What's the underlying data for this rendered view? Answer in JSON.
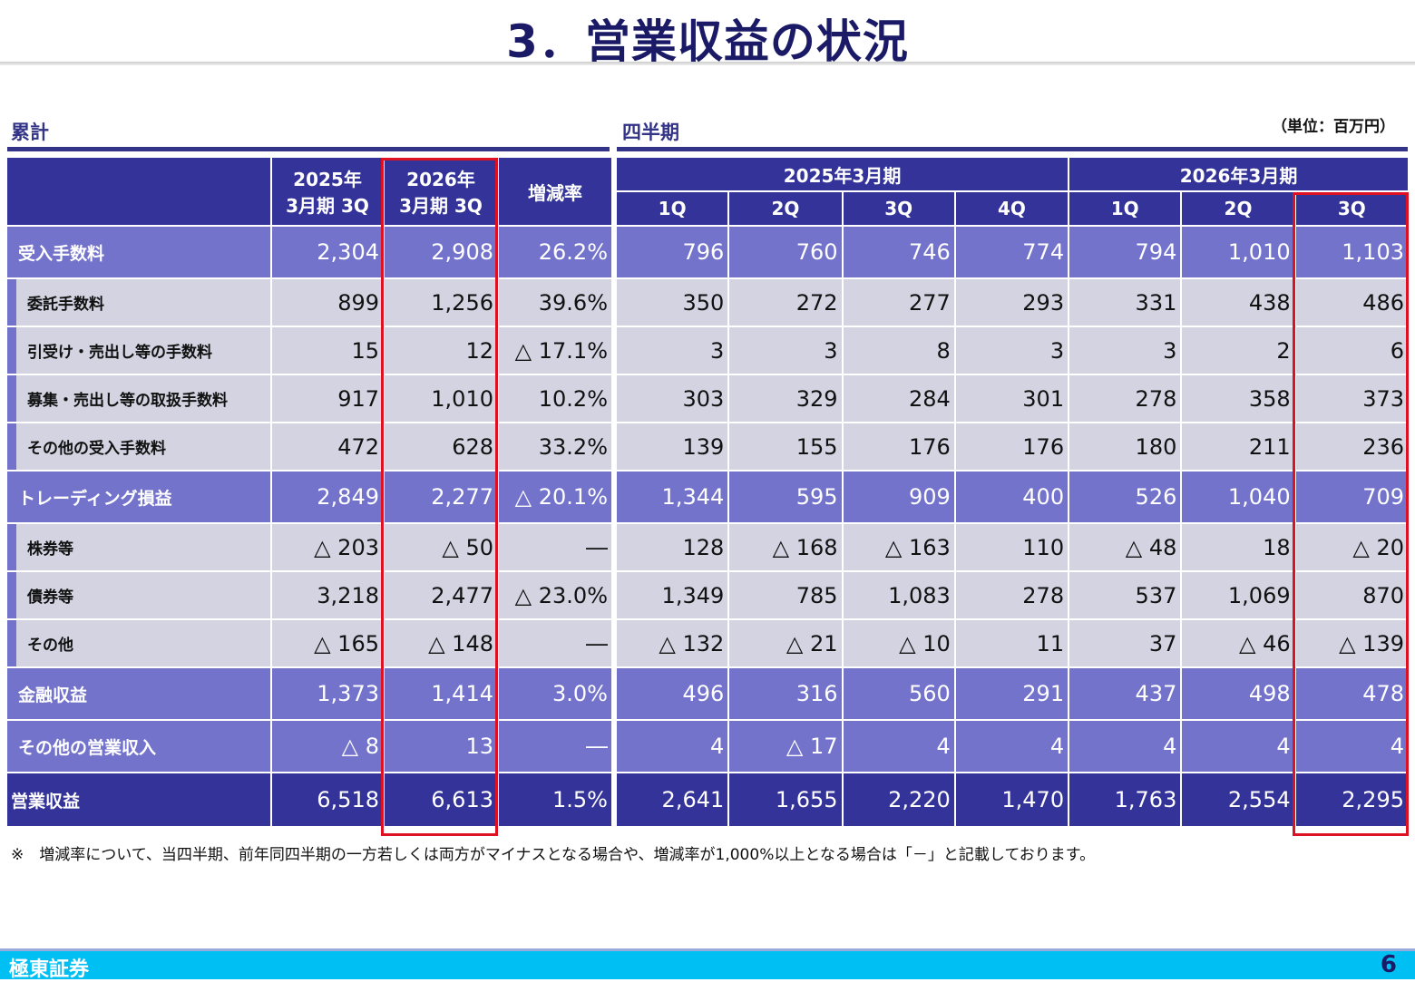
{
  "title": "3．営業収益の状況",
  "cum_label": "累計",
  "quarter_label": "四半期",
  "unit": "（単位：百万円）",
  "cum_headers": {
    "c1_line1": "2025年",
    "c1_line2": "3月期 3Q",
    "c2_line1": "2026年",
    "c2_line2": "3月期 3Q",
    "rate": "増減率"
  },
  "q_headers": {
    "fy1": "2025年3月期",
    "fy2": "2026年3月期",
    "fy1_q": [
      "1Q",
      "2Q",
      "3Q",
      "4Q"
    ],
    "fy2_q": [
      "1Q",
      "2Q",
      "3Q"
    ]
  },
  "rows": [
    {
      "label": "受入手数料",
      "level": "main",
      "cum": [
        "2,304",
        "2,908",
        "26.2%"
      ],
      "q": [
        "796",
        "760",
        "746",
        "774",
        "794",
        "1,010",
        "1,103"
      ]
    },
    {
      "label": "委託手数料",
      "level": "sub",
      "cum": [
        "899",
        "1,256",
        "39.6%"
      ],
      "q": [
        "350",
        "272",
        "277",
        "293",
        "331",
        "438",
        "486"
      ]
    },
    {
      "label": "引受け・売出し等の手数料",
      "level": "sub",
      "cum": [
        "15",
        "12",
        "△ 17.1%"
      ],
      "q": [
        "3",
        "3",
        "8",
        "3",
        "3",
        "2",
        "6"
      ]
    },
    {
      "label": "募集・売出し等の取扱手数料",
      "level": "sub",
      "cum": [
        "917",
        "1,010",
        "10.2%"
      ],
      "q": [
        "303",
        "329",
        "284",
        "301",
        "278",
        "358",
        "373"
      ]
    },
    {
      "label": "その他の受入手数料",
      "level": "sub",
      "cum": [
        "472",
        "628",
        "33.2%"
      ],
      "q": [
        "139",
        "155",
        "176",
        "176",
        "180",
        "211",
        "236"
      ]
    },
    {
      "label": "トレーディング損益",
      "level": "main",
      "cum": [
        "2,849",
        "2,277",
        "△ 20.1%"
      ],
      "q": [
        "1,344",
        "595",
        "909",
        "400",
        "526",
        "1,040",
        "709"
      ]
    },
    {
      "label": "株券等",
      "level": "sub",
      "cum": [
        "△ 203",
        "△ 50",
        "―"
      ],
      "q": [
        "128",
        "△ 168",
        "△ 163",
        "110",
        "△ 48",
        "18",
        "△ 20"
      ]
    },
    {
      "label": "債券等",
      "level": "sub",
      "cum": [
        "3,218",
        "2,477",
        "△ 23.0%"
      ],
      "q": [
        "1,349",
        "785",
        "1,083",
        "278",
        "537",
        "1,069",
        "870"
      ]
    },
    {
      "label": "その他",
      "level": "sub",
      "cum": [
        "△ 165",
        "△ 148",
        "―"
      ],
      "q": [
        "△ 132",
        "△ 21",
        "△ 10",
        "11",
        "37",
        "△ 46",
        "△ 139"
      ]
    },
    {
      "label": "金融収益",
      "level": "main",
      "cum": [
        "1,373",
        "1,414",
        "3.0%"
      ],
      "q": [
        "496",
        "316",
        "560",
        "291",
        "437",
        "498",
        "478"
      ]
    },
    {
      "label": "その他の営業収入",
      "level": "main",
      "cum": [
        "△ 8",
        "13",
        "―"
      ],
      "q": [
        "4",
        "△ 17",
        "4",
        "4",
        "4",
        "4",
        "4"
      ]
    },
    {
      "label": "営業収益",
      "level": "total",
      "cum": [
        "6,518",
        "6,613",
        "1.5%"
      ],
      "q": [
        "2,641",
        "1,655",
        "2,220",
        "1,470",
        "1,763",
        "2,554",
        "2,295"
      ]
    }
  ],
  "note": "※　増減率について、当四半期、前年同四半期の一方若しくは両方がマイナスとなる場合や、増減率が1,000%以上となる場合は「－」と記載しております。",
  "footer": {
    "company": "極東証券",
    "page": "6"
  },
  "colors": {
    "header": "#333399",
    "main_row": "#7373cc",
    "sub_row": "#d3d3e2",
    "highlight": "#dd1122",
    "footer": "#00bff3"
  }
}
